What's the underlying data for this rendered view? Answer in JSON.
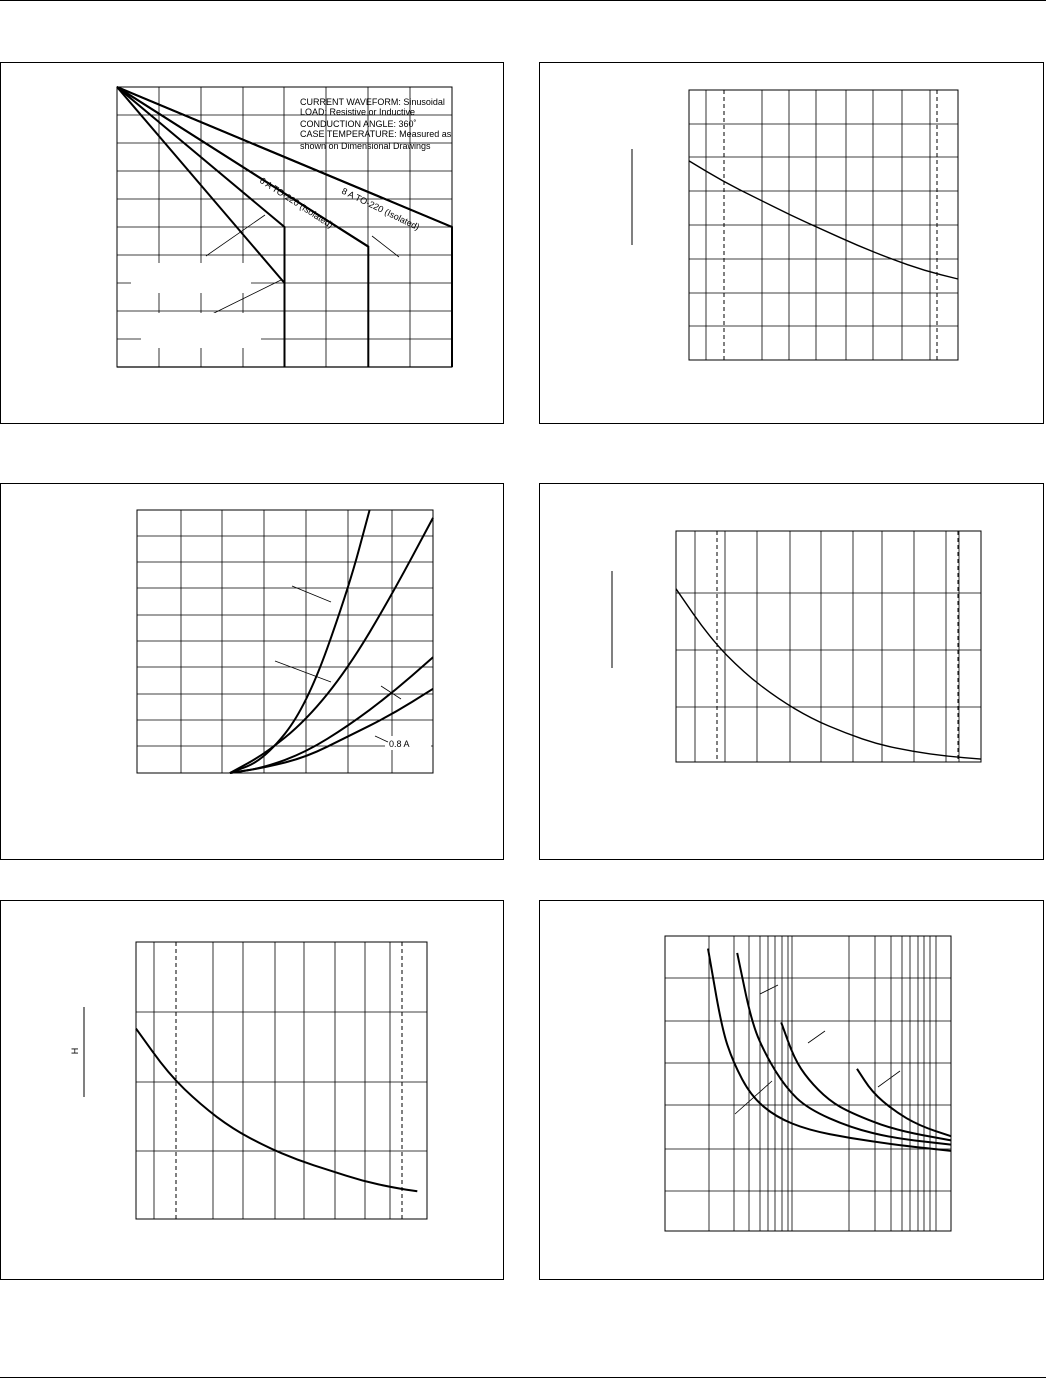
{
  "charts": [
    {
      "chart_data": {
        "type": "line",
        "grid": true,
        "note_lines": [
          "CURRENT WAVEFORM: Sinusoidal",
          "LOAD: Resistive or Inductive",
          "CONDUCTION ANGLE: 360˚",
          "CASE TEMPERATURE: Measured as",
          "shown on Dimensional Drawings"
        ],
        "series": [
          {
            "name": "",
            "x": [
              0,
              4
            ],
            "y": [
              0,
              7
            ]
          },
          {
            "name": "",
            "x": [
              0,
              4,
              4
            ],
            "y": [
              0,
              5,
              10
            ]
          },
          {
            "name": "",
            "x": [
              0,
              6
            ],
            "y": [
              0,
              5.7
            ]
          },
          {
            "name": "6 A TO-220 (Isolated)",
            "x": [
              0,
              6,
              6
            ],
            "y": [
              0,
              5.7,
              10
            ]
          },
          {
            "name": "",
            "x": [
              0,
              8
            ],
            "y": [
              0,
              5
            ]
          },
          {
            "name": "8 A TO-220 (Isolated)",
            "x": [
              0,
              8,
              8
            ],
            "y": [
              0,
              5,
              10
            ]
          }
        ]
      }
    },
    {
      "chart_data": {
        "type": "line",
        "grid": true,
        "series": [
          {
            "name": "",
            "x": [
              0,
              1,
              2,
              3,
              4,
              5,
              6,
              7,
              8
            ],
            "y": [
              2.1,
              2.7,
              3.2,
              3.7,
              4.15,
              4.6,
              5.0,
              5.35,
              5.6
            ]
          }
        ]
      }
    },
    {
      "chart_data": {
        "type": "line",
        "grid": true,
        "annotations": [
          "0.8 A"
        ],
        "series": [
          {
            "name": "",
            "x": [
              2.2,
              3,
              4,
              5,
              5.5
            ],
            "y": [
              10,
              9.5,
              7.5,
              3.0,
              0
            ]
          },
          {
            "name": "",
            "x": [
              2.2,
              3,
              4,
              5,
              6,
              7
            ],
            "y": [
              10,
              9.3,
              8.0,
              6.0,
              3.3,
              0.3
            ]
          },
          {
            "name": "",
            "x": [
              2.2,
              3,
              4,
              5,
              6,
              7
            ],
            "y": [
              10,
              9.8,
              9.2,
              8.2,
              7.0,
              5.6
            ]
          },
          {
            "name": "0.8 A",
            "x": [
              2.2,
              3,
              4,
              5,
              6,
              7
            ],
            "y": [
              10,
              9.8,
              9.4,
              8.6,
              7.8,
              6.8
            ]
          }
        ]
      }
    },
    {
      "chart_data": {
        "type": "line",
        "grid": true,
        "series": [
          {
            "name": "",
            "x": [
              0,
              1,
              2,
              3,
              4,
              5,
              6,
              7,
              8,
              9
            ],
            "y": [
              1.0,
              1.85,
              2.45,
              2.9,
              3.25,
              3.5,
              3.7,
              3.82,
              3.9,
              3.95
            ]
          }
        ]
      }
    },
    {
      "chart_data": {
        "type": "line",
        "grid": true,
        "ylabel": "H",
        "series": [
          {
            "name": "",
            "x": [
              0,
              1,
              2,
              3,
              4,
              5,
              6,
              7,
              8,
              8.7
            ],
            "y": [
              1.25,
              1.9,
              2.35,
              2.7,
              2.95,
              3.15,
              3.3,
              3.45,
              3.55,
              3.6
            ]
          }
        ]
      }
    },
    {
      "chart_data": {
        "type": "line",
        "grid": true,
        "xscale": "log",
        "series": [
          {
            "name": "",
            "x": [
              2.0,
              2.5,
              3,
              4,
              6,
              10,
              20,
              40,
              100
            ],
            "y": [
              0.3,
              2.2,
              3.0,
              3.8,
              4.3,
              4.6,
              4.8,
              4.95,
              5.1
            ]
          },
          {
            "name": "",
            "x": [
              3.2,
              4,
              5,
              7,
              10,
              20,
              40,
              100
            ],
            "y": [
              0.4,
              2.0,
              2.8,
              3.6,
              4.1,
              4.55,
              4.8,
              4.95
            ]
          },
          {
            "name": "",
            "x": [
              6.5,
              8,
              10,
              14,
              20,
              40,
              100
            ],
            "y": [
              2.05,
              2.9,
              3.4,
              3.9,
              4.2,
              4.6,
              4.85
            ]
          },
          {
            "name": "",
            "x": [
              22,
              28,
              40,
              60,
              100
            ],
            "y": [
              3.15,
              3.7,
              4.15,
              4.5,
              4.75
            ]
          }
        ]
      }
    }
  ]
}
